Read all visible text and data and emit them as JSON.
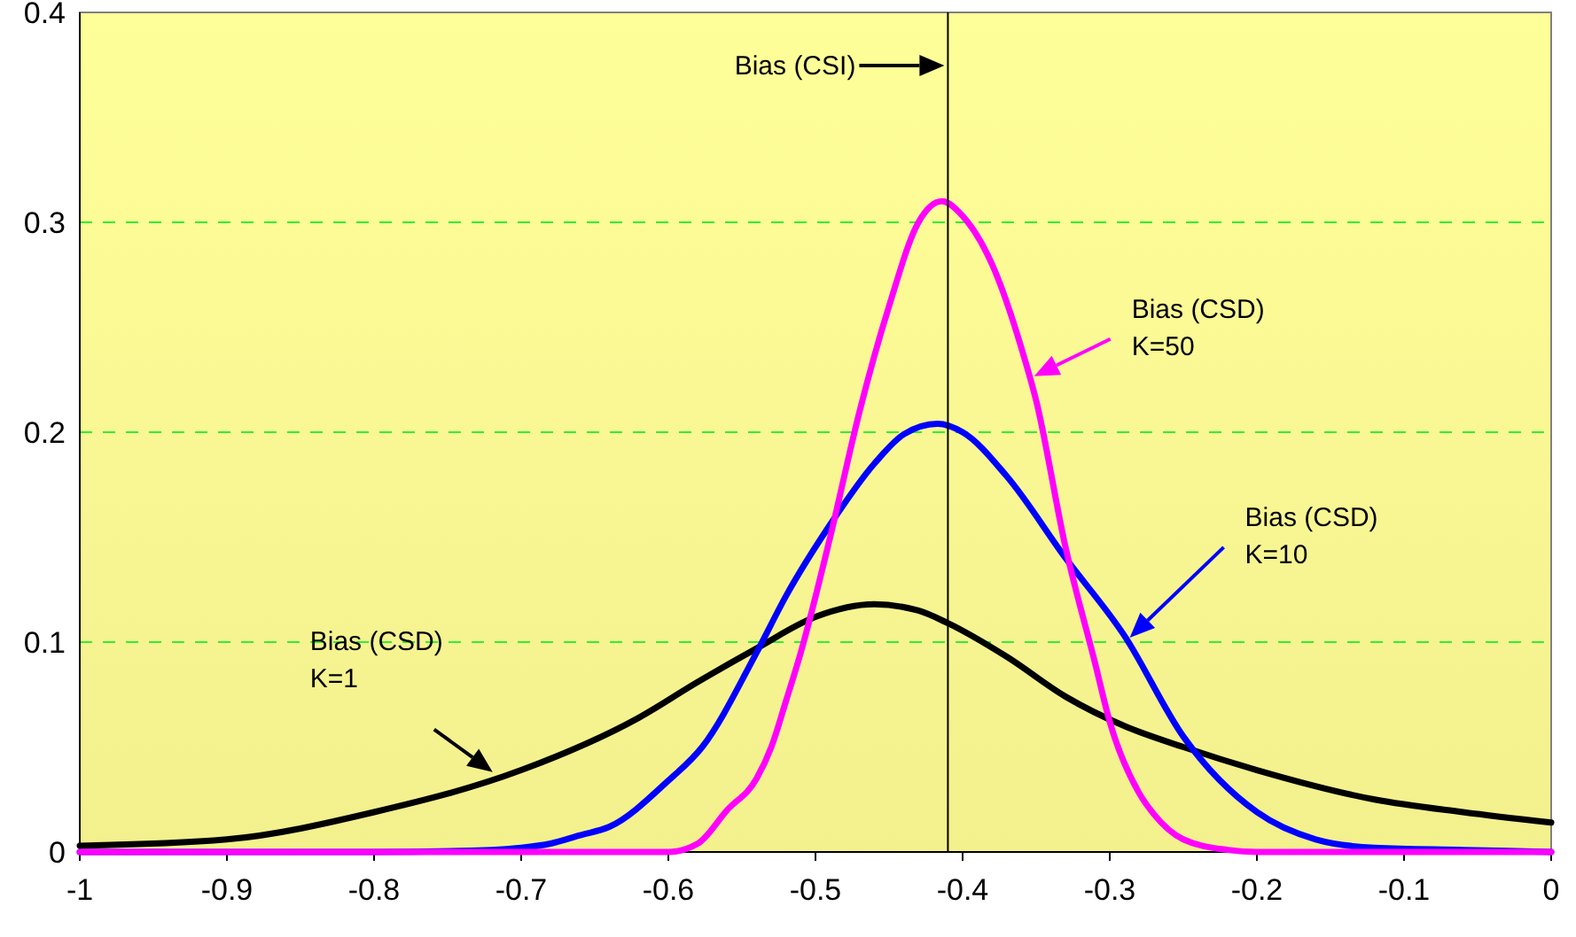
{
  "chart_data": {
    "type": "line",
    "xlim": [
      -1,
      0
    ],
    "xticks": [
      -1,
      -0.9,
      -0.8,
      -0.7,
      -0.6,
      -0.5,
      -0.4,
      -0.3,
      -0.2,
      -0.1,
      0
    ],
    "ylim": [
      0,
      0.4
    ],
    "yticks": [
      0,
      0.1,
      0.2,
      0.3,
      0.4
    ],
    "grid": "y",
    "marker": "none",
    "line_style": "solid",
    "series": [
      {
        "color": "#000000",
        "x": [
          -1,
          -0.9,
          -0.8,
          -0.7,
          -0.62,
          -0.58,
          -0.54,
          -0.5,
          -0.46,
          -0.43,
          -0.41,
          -0.37,
          -0.33,
          -0.29,
          -0.25,
          -0.2,
          -0.12,
          -0.06,
          0
        ],
        "values": [
          0.003,
          0.006,
          0.019,
          0.039,
          0.064,
          0.081,
          0.097,
          0.112,
          0.118,
          0.115,
          0.109,
          0.093,
          0.074,
          0.06,
          0.05,
          0.039,
          0.025,
          0.019,
          0.014
        ]
      },
      {
        "color": "#0000ff",
        "x": [
          -1,
          -0.8,
          -0.72,
          -0.7,
          -0.68,
          -0.66,
          -0.64,
          -0.6,
          -0.577,
          -0.54,
          -0.52,
          -0.49,
          -0.46,
          -0.44,
          -0.417,
          -0.4,
          -0.37,
          -0.33,
          -0.29,
          -0.25,
          -0.2,
          -0.16,
          -0.12,
          -0.06,
          0
        ],
        "values": [
          0,
          0,
          0.001,
          0.002,
          0.004,
          0.008,
          0.012,
          0.034,
          0.05,
          0.095,
          0.122,
          0.156,
          0.185,
          0.199,
          0.204,
          0.2,
          0.179,
          0.14,
          0.103,
          0.055,
          0.019,
          0.006,
          0.002,
          0.001,
          0
        ]
      },
      {
        "color": "#ff00ff",
        "x": [
          -1,
          -0.62,
          -0.6,
          -0.58,
          -0.56,
          -0.54,
          -0.53,
          -0.52,
          -0.51,
          -0.49,
          -0.47,
          -0.45,
          -0.43,
          -0.414,
          -0.4,
          -0.38,
          -0.36,
          -0.35,
          -0.33,
          -0.31,
          -0.3,
          -0.28,
          -0.27,
          -0.25,
          -0.22,
          -0.2,
          0
        ],
        "values": [
          0,
          0,
          0,
          0.004,
          0.02,
          0.035,
          0.05,
          0.072,
          0.095,
          0.15,
          0.21,
          0.26,
          0.3,
          0.31,
          0.303,
          0.28,
          0.24,
          0.215,
          0.145,
          0.09,
          0.062,
          0.028,
          0.018,
          0.006,
          0.001,
          0,
          0
        ]
      }
    ],
    "ref_lines": [
      {
        "axis": "x",
        "value": -0.41,
        "color": "#000000"
      }
    ],
    "annotations": [
      "Bias (CSI)",
      "Bias (CSD)\nK=1",
      "Bias (CSD)\nK=10",
      "Bias (CSD)\nK=50"
    ]
  }
}
